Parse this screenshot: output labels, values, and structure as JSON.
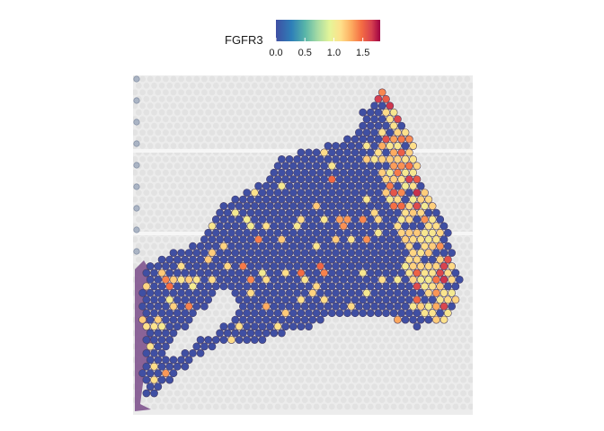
{
  "chart_data": {
    "type": "scatter",
    "subtype": "spatial-spot-feature-plot",
    "feature": "FGFR3",
    "legend": {
      "title": "FGFR3",
      "placement": "top-center",
      "colormap": "Spectral-reversed",
      "ticks": [
        "0.0",
        "0.5",
        "1.0",
        "1.5"
      ],
      "tick_values": [
        0.0,
        0.5,
        1.0,
        1.5
      ],
      "range": [
        0.0,
        1.8
      ],
      "stops": [
        "#3F4FA3",
        "#2E7FB8",
        "#58B5A8",
        "#A6DBA4",
        "#E6F598",
        "#FEE08B",
        "#FDAE61",
        "#F46D43",
        "#D53E4F",
        "#9E0142"
      ]
    },
    "grid": false,
    "axes_visible": false,
    "background": "H&E tissue image",
    "spot_value_summary": {
      "dominant_value": 0.0,
      "high_expression_region": "right edge of tissue",
      "max_value_approx": 1.6
    }
  }
}
